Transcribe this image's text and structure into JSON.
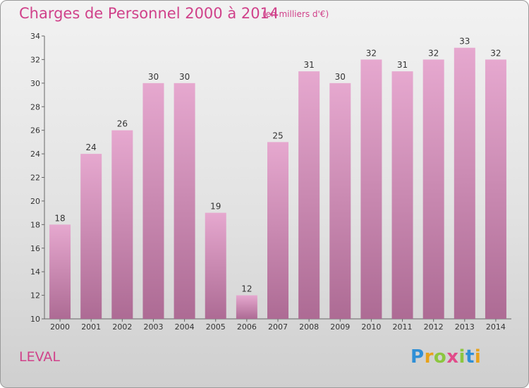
{
  "header": {
    "title": "Charges de Personnel 2000 à 2014",
    "subtitle": "(en milliers d'€)"
  },
  "footer": {
    "commune": "LEVAL",
    "logo_text": "Proxiti"
  },
  "colors": {
    "bar_top": "#e6a8cf",
    "bar_bottom": "#ad6b94",
    "title": "#d0418a"
  },
  "chart_data": {
    "type": "bar",
    "title": "Charges de Personnel 2000 à 2014",
    "subtitle": "(en milliers d'€)",
    "categories": [
      "2000",
      "2001",
      "2002",
      "2003",
      "2004",
      "2005",
      "2006",
      "2007",
      "2008",
      "2009",
      "2010",
      "2011",
      "2012",
      "2013",
      "2014"
    ],
    "values": [
      18,
      24,
      26,
      30,
      30,
      19,
      12,
      25,
      31,
      30,
      32,
      31,
      32,
      33,
      32
    ],
    "ylim": [
      10,
      34
    ],
    "yticks": [
      10,
      12,
      14,
      16,
      18,
      20,
      22,
      24,
      26,
      28,
      30,
      32,
      34
    ],
    "xlabel": "",
    "ylabel": "",
    "grid": false
  }
}
